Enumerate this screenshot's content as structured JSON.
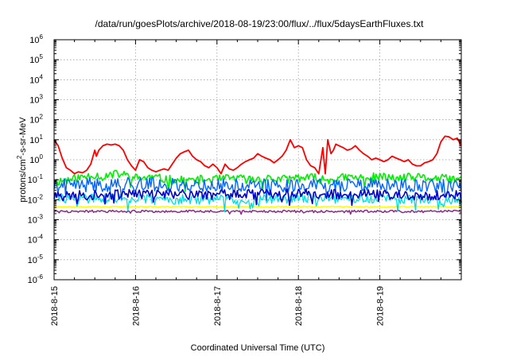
{
  "chart_data": {
    "type": "line",
    "title": "/data/run/goesPlots/archive/2018-08-19/23:00/flux/../flux/5daysEarthFluxes.txt",
    "xlabel": "Coordinated Universal Time (UTC)",
    "ylabel_main": "protons/cm",
    "ylabel_sup": "2",
    "ylabel_rest": "-s-sr-MeV",
    "yscale": "log",
    "ylim": [
      1e-06,
      1000000.0
    ],
    "xlim": [
      0,
      5
    ],
    "grid": true,
    "y_ticks": [
      {
        "base": "10",
        "exp": "-6"
      },
      {
        "base": "10",
        "exp": "-5"
      },
      {
        "base": "10",
        "exp": "-4"
      },
      {
        "base": "10",
        "exp": "-3"
      },
      {
        "base": "10",
        "exp": "-2"
      },
      {
        "base": "10",
        "exp": "-1"
      },
      {
        "base": "10",
        "exp": "0"
      },
      {
        "base": "10",
        "exp": "1"
      },
      {
        "base": "10",
        "exp": "2"
      },
      {
        "base": "10",
        "exp": "3"
      },
      {
        "base": "10",
        "exp": "4"
      },
      {
        "base": "10",
        "exp": "5"
      },
      {
        "base": "10",
        "exp": "6"
      }
    ],
    "x_ticks": [
      "2018-8-15",
      "2018-8-16",
      "2018-8-17",
      "2018-8-18",
      "2018-8-19"
    ],
    "series": [
      {
        "color": "#ff0000",
        "width": 1.8,
        "x": [
          0,
          0.05,
          0.1,
          0.15,
          0.2,
          0.25,
          0.3,
          0.35,
          0.4,
          0.45,
          0.5,
          0.52,
          0.55,
          0.6,
          0.65,
          0.7,
          0.75,
          0.8,
          0.85,
          0.9,
          0.95,
          1.0,
          1.05,
          1.1,
          1.15,
          1.2,
          1.25,
          1.3,
          1.35,
          1.4,
          1.45,
          1.5,
          1.55,
          1.6,
          1.65,
          1.7,
          1.75,
          1.8,
          1.85,
          1.9,
          1.95,
          2.0,
          2.05,
          2.1,
          2.15,
          2.2,
          2.25,
          2.3,
          2.35,
          2.4,
          2.45,
          2.5,
          2.55,
          2.6,
          2.65,
          2.7,
          2.75,
          2.8,
          2.85,
          2.9,
          2.95,
          3.0,
          3.05,
          3.1,
          3.15,
          3.2,
          3.25,
          3.3,
          3.33,
          3.36,
          3.4,
          3.43,
          3.46,
          3.5,
          3.55,
          3.6,
          3.65,
          3.7,
          3.75,
          3.8,
          3.85,
          3.9,
          3.95,
          4.0,
          4.05,
          4.1,
          4.15,
          4.2,
          4.25,
          4.3,
          4.35,
          4.4,
          4.45,
          4.5,
          4.55,
          4.6,
          4.65,
          4.7,
          4.75,
          4.8,
          4.85,
          4.9,
          4.95,
          5.0
        ],
        "y": [
          10,
          5,
          1.2,
          0.4,
          0.3,
          0.2,
          0.25,
          0.22,
          0.3,
          0.6,
          3,
          1.5,
          3,
          5,
          6,
          5.5,
          6,
          5,
          3,
          1,
          0.5,
          0.3,
          1.0,
          0.8,
          0.4,
          0.3,
          0.25,
          0.3,
          0.35,
          0.3,
          0.6,
          1.2,
          2,
          2.5,
          3,
          1.5,
          1.0,
          0.8,
          0.5,
          0.4,
          0.6,
          0.4,
          0.2,
          0.6,
          0.35,
          0.3,
          0.4,
          0.6,
          0.8,
          1.0,
          1.2,
          2.0,
          1.5,
          1.2,
          1.0,
          0.7,
          1.0,
          1.5,
          3.0,
          10,
          4,
          5,
          4,
          1.0,
          0.5,
          0.4,
          0.2,
          4,
          0.2,
          10,
          2,
          3,
          6,
          5,
          4,
          3,
          3.5,
          5,
          3,
          2,
          1.5,
          1.0,
          1.2,
          1.0,
          0.8,
          1.0,
          1.5,
          1.2,
          1.0,
          0.8,
          1.0,
          0.6,
          0.5,
          0.5,
          0.7,
          0.8,
          1.0,
          2.0,
          8,
          15,
          14,
          10,
          12,
          5
        ]
      },
      {
        "color": "#00ee00",
        "width": 1.6,
        "x": [
          0,
          0.2,
          0.4,
          0.5,
          0.6,
          0.8,
          1.0,
          1.2,
          1.4,
          1.6,
          1.8,
          2.0,
          2.2,
          2.4,
          2.6,
          2.8,
          3.0,
          3.2,
          3.4,
          3.6,
          3.8,
          4.0,
          4.2,
          4.4,
          4.6,
          4.8,
          5.0
        ],
        "y": [
          0.08,
          0.1,
          0.15,
          0.18,
          0.14,
          0.2,
          0.12,
          0.13,
          0.1,
          0.09,
          0.1,
          0.1,
          0.12,
          0.1,
          0.12,
          0.1,
          0.13,
          0.12,
          0.1,
          0.13,
          0.12,
          0.14,
          0.11,
          0.13,
          0.12,
          0.11,
          0.1
        ],
        "noise": 0.45,
        "seed": 11
      },
      {
        "color": "#00dddd",
        "width": 1.3,
        "x": [
          0,
          1,
          2,
          3,
          4,
          5
        ],
        "y": [
          0.012,
          0.011,
          0.01,
          0.012,
          0.011,
          0.01
        ],
        "noise": 0.5,
        "seed": 29
      },
      {
        "color": "#0066ff",
        "width": 1.4,
        "x": [
          0,
          1,
          2,
          3,
          4,
          5
        ],
        "y": [
          0.05,
          0.06,
          0.05,
          0.055,
          0.05,
          0.045
        ],
        "noise": 0.7,
        "seed": 41
      },
      {
        "color": "#0000cc",
        "width": 1.6,
        "x": [
          0,
          1,
          2,
          3,
          4,
          5
        ],
        "y": [
          0.015,
          0.02,
          0.018,
          0.02,
          0.018,
          0.016
        ],
        "noise": 0.5,
        "seed": 57
      },
      {
        "color": "#ffff00",
        "width": 1.6,
        "x": [
          0,
          1,
          2,
          3,
          4,
          5
        ],
        "y": [
          0.0045,
          0.0045,
          0.0045,
          0.0045,
          0.0045,
          0.0045
        ],
        "noise": 0.05,
        "seed": 63
      },
      {
        "color": "#8b2a8b",
        "width": 1.5,
        "x": [
          0,
          1,
          2,
          3,
          4,
          5
        ],
        "y": [
          0.0026,
          0.0026,
          0.0026,
          0.0026,
          0.0026,
          0.0026
        ],
        "noise": 0.12,
        "seed": 77
      }
    ]
  }
}
